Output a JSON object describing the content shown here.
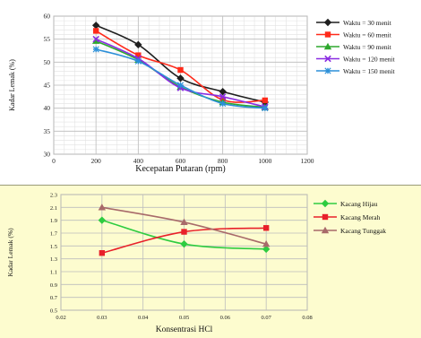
{
  "chart_data": [
    {
      "type": "line",
      "xlabel": "Kecepatan Putaran (rpm)",
      "ylabel": "Kadar Lemak (%)",
      "xlim": [
        0,
        1200
      ],
      "ylim": [
        30,
        60
      ],
      "x_ticks": [
        0,
        200,
        400,
        600,
        800,
        1000,
        1200
      ],
      "y_ticks": [
        30,
        35,
        40,
        45,
        50,
        55,
        60
      ],
      "grid": true,
      "legend": "right",
      "x": [
        200,
        400,
        600,
        800,
        1000
      ],
      "series": [
        {
          "name": "Waktu = 30 menit",
          "values": [
            58.0,
            53.8,
            46.5,
            43.6,
            41.3
          ],
          "color": "#1f1f1f",
          "marker": "diamond"
        },
        {
          "name": "Waktu = 60 menit",
          "values": [
            56.8,
            51.5,
            48.3,
            41.8,
            41.7
          ],
          "color": "#ff2a1a",
          "marker": "square"
        },
        {
          "name": "Waktu = 90 menit",
          "values": [
            54.6,
            50.5,
            44.6,
            41.3,
            40.2
          ],
          "color": "#2ea82e",
          "marker": "triangle"
        },
        {
          "name": "Waktu = 120 menit",
          "values": [
            55.0,
            50.8,
            44.4,
            42.5,
            40.3
          ],
          "color": "#8a2be2",
          "marker": "x"
        },
        {
          "name": "Waktu = 150 menit",
          "values": [
            52.8,
            50.2,
            45.0,
            41.0,
            40.0
          ],
          "color": "#2b8fd8",
          "marker": "star"
        }
      ]
    },
    {
      "type": "line",
      "xlabel": "Konsentrasi HCl",
      "ylabel": "Kadar Lemak (%)",
      "xlim": [
        0.02,
        0.08
      ],
      "ylim": [
        0.5,
        2.3
      ],
      "x_ticks": [
        "0.02",
        "0.03",
        "0.04",
        "0.05",
        "0.06",
        "0.07",
        "0.08"
      ],
      "y_ticks": [
        "0.5",
        "0.7",
        "0.9",
        "1.1",
        "1.3",
        "1.5",
        "1.7",
        "1.9",
        "2.1",
        "2.3"
      ],
      "grid": true,
      "legend": "right",
      "x": [
        0.03,
        0.05,
        0.07
      ],
      "series": [
        {
          "name": "Kacang Hijau",
          "values": [
            1.9,
            1.53,
            1.45
          ],
          "color": "#2ecc40",
          "marker": "diamond"
        },
        {
          "name": "Kacang Merah",
          "values": [
            1.39,
            1.72,
            1.78
          ],
          "color": "#e8202a",
          "marker": "square"
        },
        {
          "name": "Kacang Tunggak",
          "values": [
            2.1,
            1.87,
            1.53
          ],
          "color": "#a86a6a",
          "marker": "triangle"
        }
      ]
    }
  ]
}
